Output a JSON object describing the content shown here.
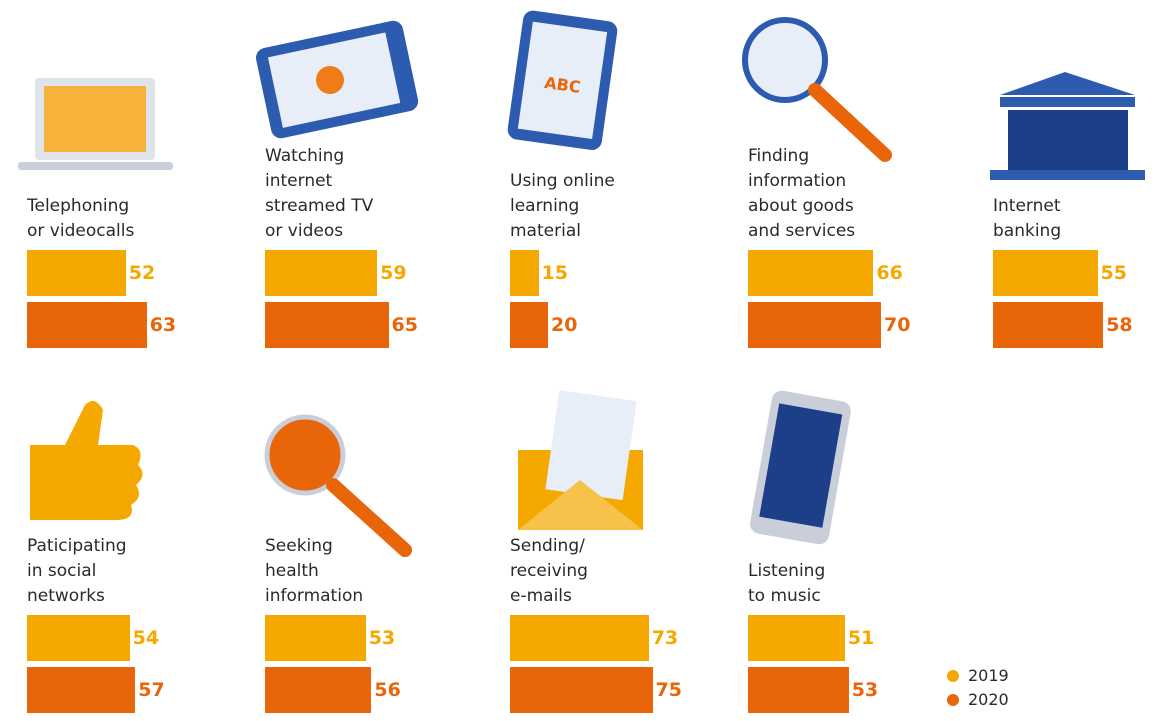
{
  "chart_data": {
    "type": "bar",
    "categories": [
      "Telephoning\nor videocalls",
      "Watching\ninternet\nstreamed TV\nor videos",
      "Using online\nlearning\nmaterial",
      "Finding\ninformation\nabout goods\nand services",
      "Internet\nbanking",
      "Paticipating\nin social\nnetworks",
      "Seeking\nhealth\ninformation",
      "Sending/\nreceiving\ne-mails",
      "Listening\nto music"
    ],
    "series": [
      {
        "name": "2019",
        "color": "#f5a800",
        "values": [
          52,
          59,
          15,
          66,
          55,
          54,
          53,
          73,
          51
        ]
      },
      {
        "name": "2020",
        "color": "#e8650a",
        "values": [
          63,
          65,
          20,
          70,
          58,
          57,
          56,
          75,
          53
        ]
      }
    ]
  }
}
